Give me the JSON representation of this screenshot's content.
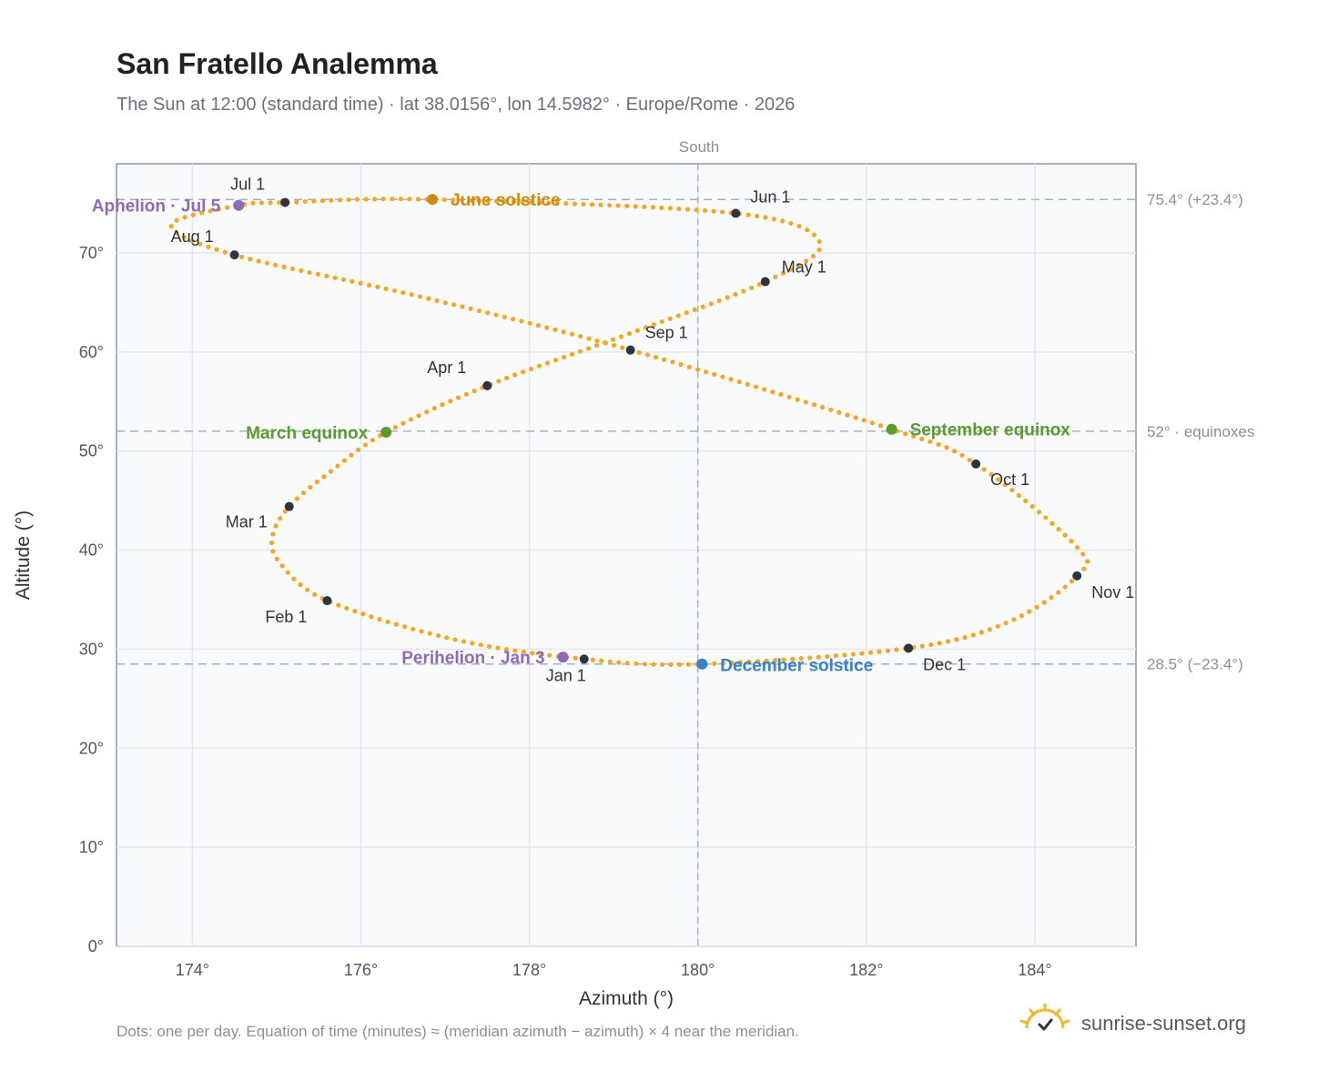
{
  "header": {
    "title": "San Fratello Analemma",
    "subtitle": "The Sun at 12:00 (standard time) · lat 38.0156°, lon 14.5982° · Europe/Rome · 2026"
  },
  "footer": {
    "note": "Dots: one per day. Equation of time (minutes) ≈ (meridian azimuth − azimuth) × 4 near the meridian.",
    "brand": "sunrise-sunset.org",
    "brand_icon": "sun-horizon-icon"
  },
  "chart_data": {
    "type": "scatter",
    "xlabel": "Azimuth (°)",
    "ylabel": "Altitude (°)",
    "xlim": [
      173.1,
      185.2
    ],
    "ylim": [
      0,
      79
    ],
    "x_ticks": [
      174,
      176,
      178,
      180,
      182,
      184
    ],
    "y_ticks": [
      0,
      10,
      20,
      30,
      40,
      50,
      60,
      70
    ],
    "x_tick_labels": [
      "174°",
      "176°",
      "178°",
      "180°",
      "182°",
      "184°"
    ],
    "y_tick_labels": [
      "0°",
      "10°",
      "20°",
      "30°",
      "40°",
      "50°",
      "60°",
      "70°"
    ],
    "grid": true,
    "meridian": {
      "azimuth": 180,
      "label": "South"
    },
    "reference_lines": [
      {
        "altitude": 75.4,
        "label": "75.4° (+23.4°)"
      },
      {
        "altitude": 52,
        "label": "52° · equinoxes"
      },
      {
        "altitude": 28.5,
        "label": "28.5° (−23.4°)"
      }
    ],
    "daily_path_color": "#f5a623",
    "daily_path_anchors": [
      {
        "date": "Jan 1",
        "az": 178.65,
        "alt": 29.0
      },
      {
        "date": "Jan 16",
        "az": 177.1,
        "alt": 31.0
      },
      {
        "date": "Feb 1",
        "az": 175.6,
        "alt": 34.9
      },
      {
        "date": "Feb 12",
        "az": 175.05,
        "alt": 38.6
      },
      {
        "date": "Feb 20",
        "az": 174.95,
        "alt": 41.3
      },
      {
        "date": "Mar 1",
        "az": 175.15,
        "alt": 44.4
      },
      {
        "date": "Mar 10",
        "az": 175.65,
        "alt": 48.0
      },
      {
        "date": "Mar 20",
        "az": 176.3,
        "alt": 51.9
      },
      {
        "date": "Apr 1",
        "az": 177.5,
        "alt": 56.6
      },
      {
        "date": "Apr 15",
        "az": 179.2,
        "alt": 61.9
      },
      {
        "date": "May 1",
        "az": 180.8,
        "alt": 67.1
      },
      {
        "date": "May 15",
        "az": 181.45,
        "alt": 71.0
      },
      {
        "date": "Jun 1",
        "az": 180.45,
        "alt": 74.0
      },
      {
        "date": "Jun 21",
        "az": 176.85,
        "alt": 75.4
      },
      {
        "date": "Jul 1",
        "az": 175.1,
        "alt": 75.1
      },
      {
        "date": "Jul 5",
        "az": 174.55,
        "alt": 74.8
      },
      {
        "date": "Jul 20",
        "az": 173.75,
        "alt": 72.8
      },
      {
        "date": "Aug 1",
        "az": 174.5,
        "alt": 69.8
      },
      {
        "date": "Aug 15",
        "az": 176.7,
        "alt": 65.6
      },
      {
        "date": "Sep 1",
        "az": 179.2,
        "alt": 60.2
      },
      {
        "date": "Sep 23",
        "az": 182.3,
        "alt": 52.2
      },
      {
        "date": "Oct 1",
        "az": 183.3,
        "alt": 48.7
      },
      {
        "date": "Oct 20",
        "az": 184.5,
        "alt": 40.3
      },
      {
        "date": "Nov 1",
        "az": 184.5,
        "alt": 37.4
      },
      {
        "date": "Nov 16",
        "az": 183.7,
        "alt": 32.8
      },
      {
        "date": "Dec 1",
        "az": 182.5,
        "alt": 30.1
      },
      {
        "date": "Dec 21",
        "az": 180.05,
        "alt": 28.5
      },
      {
        "date": "Dec 31",
        "az": 178.65,
        "alt": 29.0
      }
    ],
    "month_markers": [
      {
        "label": "Jan 1",
        "az": 178.65,
        "alt": 29.0
      },
      {
        "label": "Feb 1",
        "az": 175.6,
        "alt": 34.9
      },
      {
        "label": "Mar 1",
        "az": 175.15,
        "alt": 44.4
      },
      {
        "label": "Apr 1",
        "az": 177.5,
        "alt": 56.6
      },
      {
        "label": "May 1",
        "az": 180.8,
        "alt": 67.1
      },
      {
        "label": "Jun 1",
        "az": 180.45,
        "alt": 74.0
      },
      {
        "label": "Jul 1",
        "az": 175.1,
        "alt": 75.1
      },
      {
        "label": "Aug 1",
        "az": 174.5,
        "alt": 69.8
      },
      {
        "label": "Sep 1",
        "az": 179.2,
        "alt": 60.2
      },
      {
        "label": "Oct 1",
        "az": 183.3,
        "alt": 48.7
      },
      {
        "label": "Nov 1",
        "az": 184.5,
        "alt": 37.4
      },
      {
        "label": "Dec 1",
        "az": 182.5,
        "alt": 30.1
      }
    ],
    "events": [
      {
        "label": "Perihelion · Jan 3",
        "az": 178.4,
        "alt": 29.2,
        "color": "#8e6bb8"
      },
      {
        "label": "March equinox",
        "az": 176.3,
        "alt": 51.9,
        "color": "#5a9a2f"
      },
      {
        "label": "June solstice",
        "az": 176.85,
        "alt": 75.4,
        "color": "#d18b0a"
      },
      {
        "label": "Aphelion · Jul 5",
        "az": 174.55,
        "alt": 74.8,
        "color": "#8e6bb8"
      },
      {
        "label": "September equinox",
        "az": 182.3,
        "alt": 52.2,
        "color": "#5a9a2f"
      },
      {
        "label": "December solstice",
        "az": 180.05,
        "alt": 28.5,
        "color": "#3a7fc8"
      }
    ]
  }
}
